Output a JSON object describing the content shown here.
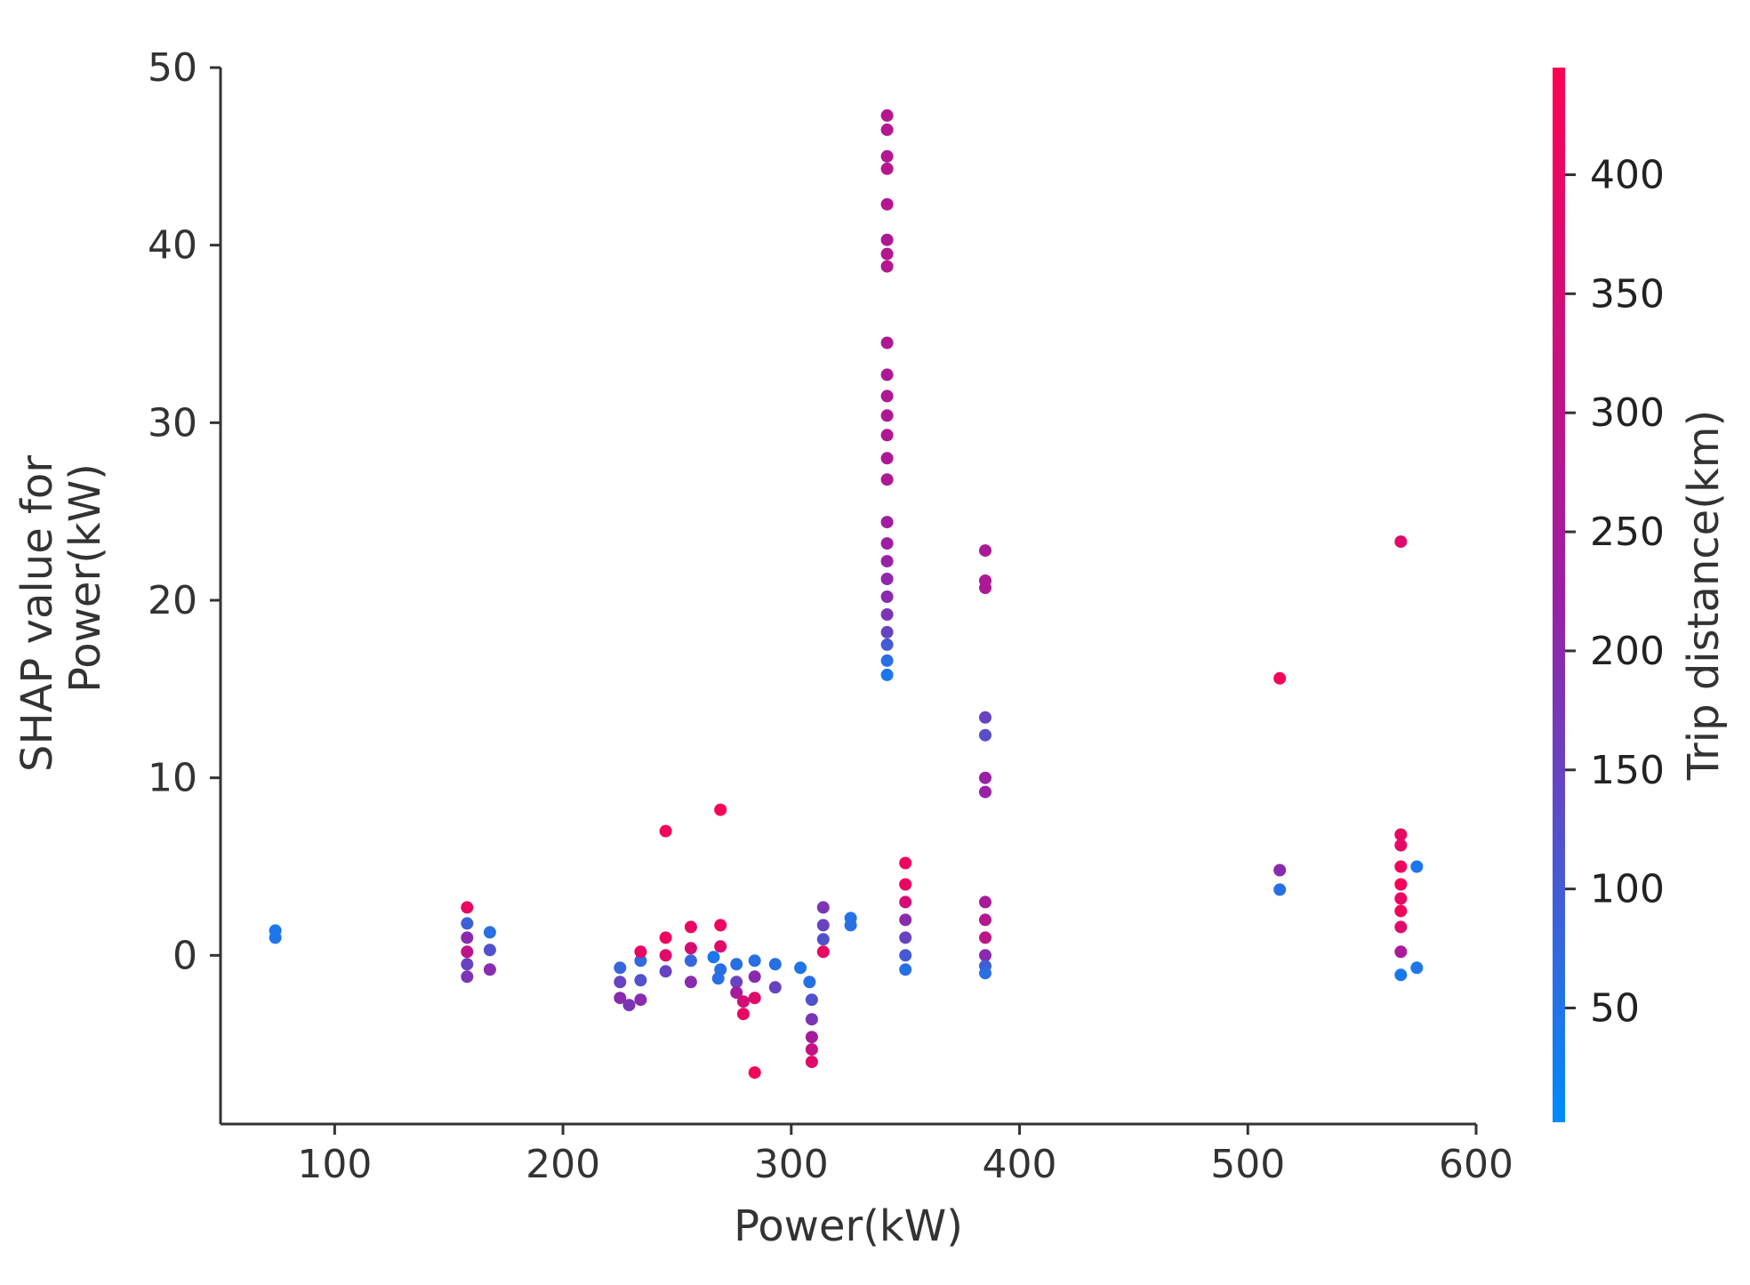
{
  "chart_data": {
    "type": "scatter",
    "title": "",
    "xlabel": "Power(kW)",
    "ylabel_line1": "SHAP value for",
    "ylabel_line2": "Power(kW)",
    "xlim": [
      50,
      600
    ],
    "ylim": [
      -9.5,
      50
    ],
    "xticks": [
      100,
      200,
      300,
      400,
      500,
      600
    ],
    "yticks": [
      0,
      10,
      20,
      30,
      40,
      50
    ],
    "x_tick_labels": [
      "100",
      "200",
      "300",
      "400",
      "500",
      "600"
    ],
    "y_tick_labels": [
      "0",
      "10",
      "20",
      "30",
      "40",
      "50"
    ],
    "colorbar": {
      "label": "Trip distance(km)",
      "range": [
        2,
        445
      ],
      "ticks": [
        50,
        100,
        150,
        200,
        250,
        300,
        350,
        400
      ],
      "tick_labels": [
        "50",
        "100",
        "150",
        "200",
        "250",
        "300",
        "350",
        "400"
      ],
      "color_low": "#008bfb",
      "color_mid": "#9a1fa5",
      "color_high": "#ff0052"
    },
    "grid": false,
    "points": [
      [
        74,
        1.4,
        40
      ],
      [
        74,
        1.0,
        45
      ],
      [
        158,
        2.7,
        400
      ],
      [
        158,
        1.8,
        90
      ],
      [
        158,
        1.0,
        200
      ],
      [
        158,
        0.2,
        300
      ],
      [
        158,
        -0.5,
        150
      ],
      [
        158,
        -1.2,
        180
      ],
      [
        168,
        1.3,
        60
      ],
      [
        168,
        0.3,
        120
      ],
      [
        168,
        -0.8,
        200
      ],
      [
        225,
        -0.7,
        80
      ],
      [
        225,
        -1.5,
        150
      ],
      [
        225,
        -2.4,
        200
      ],
      [
        229,
        -2.8,
        180
      ],
      [
        234,
        -0.3,
        70
      ],
      [
        234,
        -1.4,
        120
      ],
      [
        234,
        -2.5,
        200
      ],
      [
        234,
        0.2,
        400
      ],
      [
        245,
        7.0,
        420
      ],
      [
        245,
        1.0,
        410
      ],
      [
        245,
        0.0,
        380
      ],
      [
        245,
        -0.9,
        150
      ],
      [
        256,
        1.6,
        400
      ],
      [
        256,
        0.4,
        350
      ],
      [
        256,
        -0.3,
        80
      ],
      [
        256,
        -1.5,
        200
      ],
      [
        266,
        -0.1,
        40
      ],
      [
        268,
        -1.3,
        60
      ],
      [
        269,
        8.2,
        430
      ],
      [
        269,
        1.7,
        410
      ],
      [
        269,
        0.5,
        380
      ],
      [
        269,
        -0.8,
        60
      ],
      [
        276,
        -0.5,
        60
      ],
      [
        276,
        -1.5,
        150
      ],
      [
        276,
        -2.1,
        250
      ],
      [
        279,
        -3.3,
        400
      ],
      [
        279,
        -2.6,
        350
      ],
      [
        284,
        -6.6,
        420
      ],
      [
        284,
        -2.4,
        380
      ],
      [
        284,
        -1.2,
        200
      ],
      [
        284,
        -0.3,
        60
      ],
      [
        293,
        -0.5,
        60
      ],
      [
        293,
        -1.8,
        150
      ],
      [
        304,
        -0.7,
        50
      ],
      [
        308,
        -1.5,
        60
      ],
      [
        309,
        -2.5,
        120
      ],
      [
        309,
        -3.6,
        180
      ],
      [
        309,
        -4.6,
        250
      ],
      [
        309,
        -5.3,
        320
      ],
      [
        309,
        -6.0,
        380
      ],
      [
        314,
        2.7,
        180
      ],
      [
        314,
        1.7,
        150
      ],
      [
        314,
        0.9,
        120
      ],
      [
        314,
        0.2,
        400
      ],
      [
        326,
        2.1,
        50
      ],
      [
        326,
        1.7,
        60
      ],
      [
        342,
        47.3,
        280
      ],
      [
        342,
        46.5,
        280
      ],
      [
        342,
        45.0,
        280
      ],
      [
        342,
        44.3,
        290
      ],
      [
        342,
        42.3,
        280
      ],
      [
        342,
        40.3,
        270
      ],
      [
        342,
        39.5,
        280
      ],
      [
        342,
        38.8,
        280
      ],
      [
        342,
        34.5,
        270
      ],
      [
        342,
        32.7,
        270
      ],
      [
        342,
        31.5,
        270
      ],
      [
        342,
        30.4,
        270
      ],
      [
        342,
        29.3,
        270
      ],
      [
        342,
        28.0,
        270
      ],
      [
        342,
        26.8,
        270
      ],
      [
        342,
        24.4,
        240
      ],
      [
        342,
        23.2,
        230
      ],
      [
        342,
        22.2,
        220
      ],
      [
        342,
        21.2,
        210
      ],
      [
        342,
        20.2,
        200
      ],
      [
        342,
        19.2,
        180
      ],
      [
        342,
        18.2,
        150
      ],
      [
        342,
        17.5,
        100
      ],
      [
        342,
        16.6,
        60
      ],
      [
        342,
        15.8,
        40
      ],
      [
        350,
        5.2,
        410
      ],
      [
        350,
        4.0,
        400
      ],
      [
        350,
        3.0,
        350
      ],
      [
        350,
        2.0,
        200
      ],
      [
        350,
        1.0,
        150
      ],
      [
        350,
        0.0,
        100
      ],
      [
        350,
        -0.8,
        60
      ],
      [
        385,
        22.8,
        260
      ],
      [
        385,
        21.1,
        270
      ],
      [
        385,
        20.7,
        270
      ],
      [
        385,
        13.4,
        150
      ],
      [
        385,
        12.4,
        130
      ],
      [
        385,
        10.0,
        220
      ],
      [
        385,
        9.2,
        220
      ],
      [
        385,
        3.0,
        250
      ],
      [
        385,
        2.0,
        280
      ],
      [
        385,
        1.0,
        300
      ],
      [
        385,
        0.0,
        200
      ],
      [
        385,
        -0.6,
        100
      ],
      [
        385,
        -1.0,
        60
      ],
      [
        514,
        15.6,
        420
      ],
      [
        514,
        4.8,
        200
      ],
      [
        514,
        3.7,
        60
      ],
      [
        567,
        23.3,
        380
      ],
      [
        567,
        6.8,
        400
      ],
      [
        567,
        6.2,
        390
      ],
      [
        567,
        5.0,
        410
      ],
      [
        567,
        4.0,
        420
      ],
      [
        567,
        3.2,
        400
      ],
      [
        567,
        2.5,
        420
      ],
      [
        567,
        1.6,
        380
      ],
      [
        567,
        0.2,
        260
      ],
      [
        567,
        -1.1,
        40
      ],
      [
        574,
        5.0,
        40
      ],
      [
        574,
        -0.7,
        45
      ]
    ]
  }
}
